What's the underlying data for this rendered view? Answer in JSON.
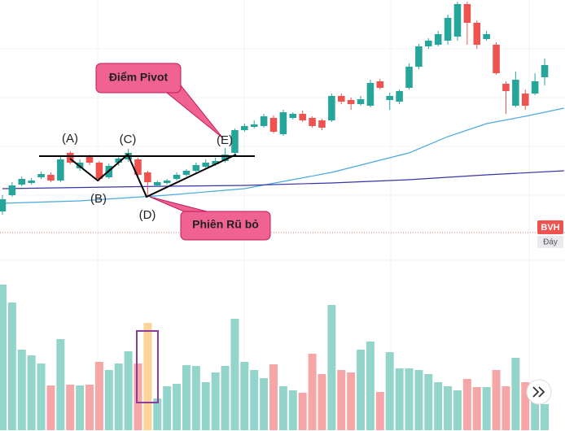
{
  "chart_data": {
    "type": "candlestick",
    "symbol": "BVH",
    "tag": "Đáy",
    "annotations": {
      "pivot": "Điểm Pivot",
      "shakeout": "Phiên Rũ bỏ",
      "points": [
        "(A)",
        "(B)",
        "(C)",
        "(D)",
        "(E)"
      ]
    },
    "up_color": "#26a69a",
    "down_color": "#ef5350",
    "volume_up_color": "#93d5ca",
    "volume_down_color": "#f7a6a8",
    "xlim": [
      -0.25,
      58.1
    ],
    "ylim": [
      0,
      300
    ],
    "volume_ylim": [
      0,
      190
    ],
    "open": [
      40,
      60,
      73,
      75,
      82,
      85,
      78,
      112,
      93,
      108,
      100,
      82,
      100,
      104,
      104,
      88,
      72,
      75,
      80,
      85,
      90,
      95,
      98,
      102,
      112,
      140,
      144,
      145,
      155,
      135,
      155,
      160,
      155,
      152,
      152,
      182,
      177,
      172,
      170,
      200,
      177,
      175,
      192,
      218,
      243,
      245,
      250,
      255,
      295,
      272,
      252,
      245,
      197,
      170,
      185,
      185,
      205
    ],
    "high": [
      60,
      76,
      83,
      81,
      89,
      88,
      107,
      114,
      104,
      110,
      102,
      99,
      108,
      117,
      106,
      90,
      78,
      80,
      88,
      92,
      100,
      104,
      106,
      118,
      142,
      148,
      152,
      160,
      158,
      165,
      162,
      164,
      157,
      154,
      185,
      185,
      180,
      182,
      202,
      203,
      186,
      190,
      222,
      246,
      253,
      262,
      282,
      298,
      298,
      275,
      262,
      248,
      200,
      212,
      190,
      210,
      228
    ],
    "low": [
      36,
      58,
      71,
      73,
      80,
      76,
      76,
      98,
      90,
      97,
      77,
      80,
      96,
      101,
      82,
      60,
      70,
      73,
      78,
      83,
      88,
      93,
      96,
      100,
      110,
      138,
      142,
      143,
      136,
      133,
      153,
      150,
      143,
      140,
      150,
      172,
      165,
      170,
      168,
      190,
      165,
      172,
      190,
      215,
      240,
      243,
      245,
      250,
      245,
      240,
      250,
      208,
      160,
      168,
      165,
      183,
      195
    ],
    "close": [
      55,
      72,
      80,
      78,
      86,
      78,
      104,
      100,
      100,
      100,
      80,
      96,
      105,
      112,
      85,
      76,
      76,
      78,
      85,
      90,
      97,
      100,
      102,
      110,
      140,
      145,
      147,
      157,
      138,
      162,
      160,
      152,
      145,
      143,
      182,
      175,
      172,
      178,
      198,
      192,
      182,
      188,
      218,
      243,
      250,
      258,
      278,
      295,
      272,
      245,
      258,
      210,
      188,
      202,
      170,
      200,
      220
    ],
    "volume": [
      179,
      157,
      99,
      92,
      82,
      55,
      112,
      56,
      55,
      56,
      84,
      74,
      82,
      97,
      82,
      132,
      39,
      54,
      57,
      80,
      79,
      59,
      71,
      79,
      137,
      84,
      74,
      64,
      81,
      54,
      49,
      46,
      94,
      69,
      154,
      74,
      71,
      99,
      109,
      47,
      96,
      76,
      76,
      74,
      69,
      59,
      54,
      49,
      63,
      53,
      53,
      74,
      54,
      89,
      59,
      44,
      32
    ],
    "series": [
      {
        "color": "#4aa8e0",
        "x": [
          0,
          8,
          17,
          25,
          34,
          38,
          42,
          46,
          50,
          54,
          58
        ],
        "values": [
          50,
          53,
          60,
          68,
          88,
          100,
          112,
          132,
          148,
          157,
          167
        ]
      },
      {
        "color": "#3a33a8",
        "x": [
          0,
          17,
          25,
          34,
          42,
          50,
          58
        ],
        "values": [
          68,
          71,
          72,
          75,
          79,
          85,
          90
        ]
      }
    ]
  }
}
